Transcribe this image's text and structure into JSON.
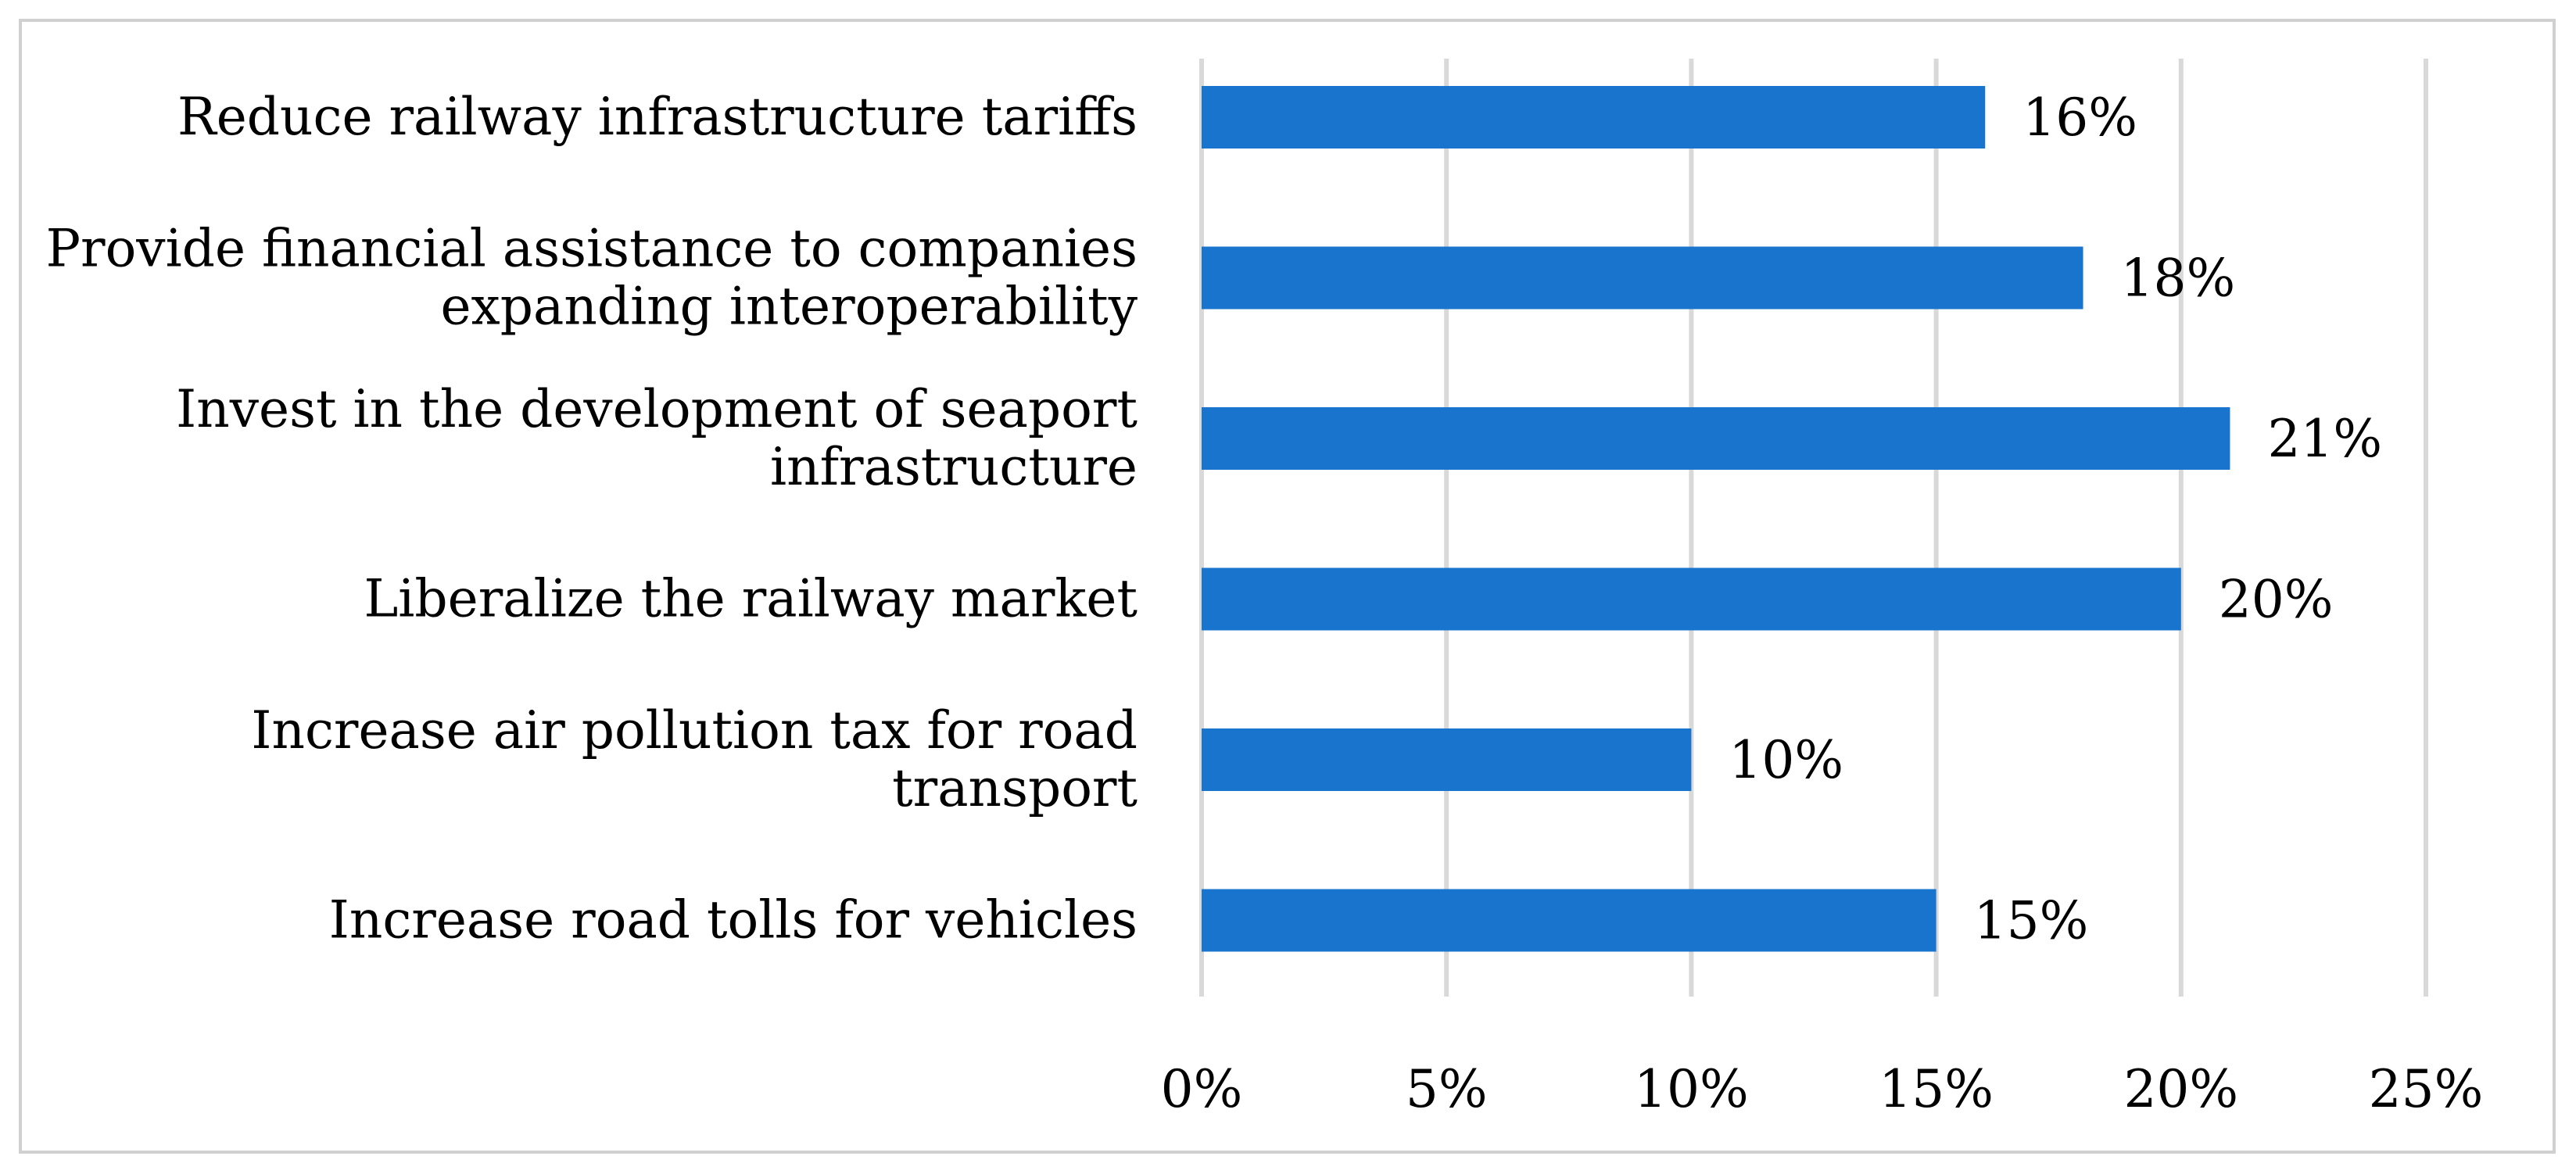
{
  "chart_data": {
    "type": "bar",
    "orientation": "horizontal",
    "categories": [
      [
        "Reduce railway infrastructure tariffs"
      ],
      [
        "Provide financial assistance to companies",
        "expanding interoperability"
      ],
      [
        "Invest in the development of seaport",
        "infrastructure"
      ],
      [
        "Liberalize the railway market"
      ],
      [
        "Increase air pollution tax for road",
        "transport"
      ],
      [
        "Increase road tolls for vehicles"
      ]
    ],
    "values": [
      16,
      18,
      21,
      20,
      10,
      15
    ],
    "data_labels": [
      "16%",
      "18%",
      "21%",
      "20%",
      "10%",
      "15%"
    ],
    "xlim": [
      0,
      25
    ],
    "x_ticks": [
      0,
      5,
      10,
      15,
      20,
      25
    ],
    "x_tick_labels": [
      "0%",
      "5%",
      "10%",
      "15%",
      "20%",
      "25%"
    ],
    "grid": true,
    "legend": "none",
    "bar_color": "#1874CD",
    "title": "",
    "xlabel": "",
    "ylabel": ""
  }
}
